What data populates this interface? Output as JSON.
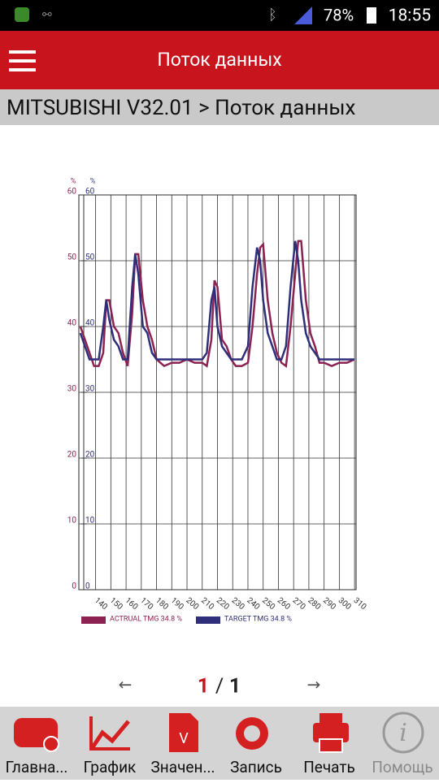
{
  "status_bar": {
    "battery": "78%",
    "time": "18:55"
  },
  "app_bar": {
    "title": "Поток данных"
  },
  "breadcrumb": "MITSUBISHI V32.01 > Поток данных",
  "chart_data": {
    "type": "line",
    "y_label": "%",
    "y2_label": "%",
    "x": [
      130,
      133,
      136,
      139,
      142,
      145,
      147,
      149,
      152,
      155,
      158,
      161,
      164,
      166,
      168,
      171,
      174,
      177,
      180,
      185,
      190,
      195,
      200,
      205,
      210,
      213,
      216,
      218,
      220,
      223,
      226,
      229,
      232,
      236,
      240,
      243,
      246,
      248,
      250,
      253,
      256,
      259,
      262,
      265,
      268,
      271,
      273,
      275,
      278,
      281,
      284,
      287,
      290,
      295,
      300,
      305,
      310
    ],
    "series": [
      {
        "name": "ACTRUAL TMG 34.8 %",
        "color": "#8b2252",
        "values": [
          40,
          38,
          36,
          34,
          34,
          36,
          44,
          44,
          40,
          39,
          36,
          34,
          42,
          51,
          51,
          44,
          40,
          38,
          35,
          34,
          34.5,
          34.5,
          35,
          34.5,
          34.5,
          34,
          38,
          47,
          46,
          38,
          37,
          35,
          34,
          34,
          34.5,
          40,
          48,
          52,
          52.5,
          44,
          39,
          36,
          34.5,
          34,
          40,
          48,
          53,
          53,
          44,
          39,
          37,
          34.5,
          34.5,
          34,
          34.5,
          34.5,
          35
        ]
      },
      {
        "name": "TARGET TMG 34.8 %",
        "color": "#2e2e7a",
        "axis": "y2",
        "values": [
          39,
          37,
          35,
          35,
          35,
          40,
          44,
          41,
          38,
          37,
          35,
          35,
          46,
          51,
          48,
          40,
          39,
          36,
          35,
          35,
          35,
          35,
          35,
          35,
          35,
          36,
          44,
          46,
          40,
          37,
          36,
          35,
          35,
          35,
          37,
          46,
          52,
          50,
          44,
          39,
          37,
          35,
          35,
          37,
          46,
          53,
          50,
          44,
          39,
          37,
          36,
          35,
          35,
          35,
          35,
          35,
          35
        ]
      }
    ],
    "xlim": [
      129,
      311
    ],
    "xticks": [
      140,
      150,
      160,
      170,
      180,
      190,
      200,
      210,
      220,
      230,
      240,
      250,
      260,
      270,
      280,
      290,
      300,
      310
    ],
    "ylim": [
      0,
      60
    ],
    "yticks": [
      0,
      10,
      20,
      30,
      40,
      50,
      60
    ],
    "y2lim": [
      0,
      60
    ],
    "y2ticks": [
      0,
      10,
      20,
      30,
      40,
      50,
      60
    ],
    "grid": true
  },
  "pagination": {
    "current": "1",
    "separator": "/",
    "total": "1"
  },
  "nav": [
    "Главна...",
    "График",
    "Значен...",
    "Запись",
    "Печать",
    "Помощь"
  ]
}
